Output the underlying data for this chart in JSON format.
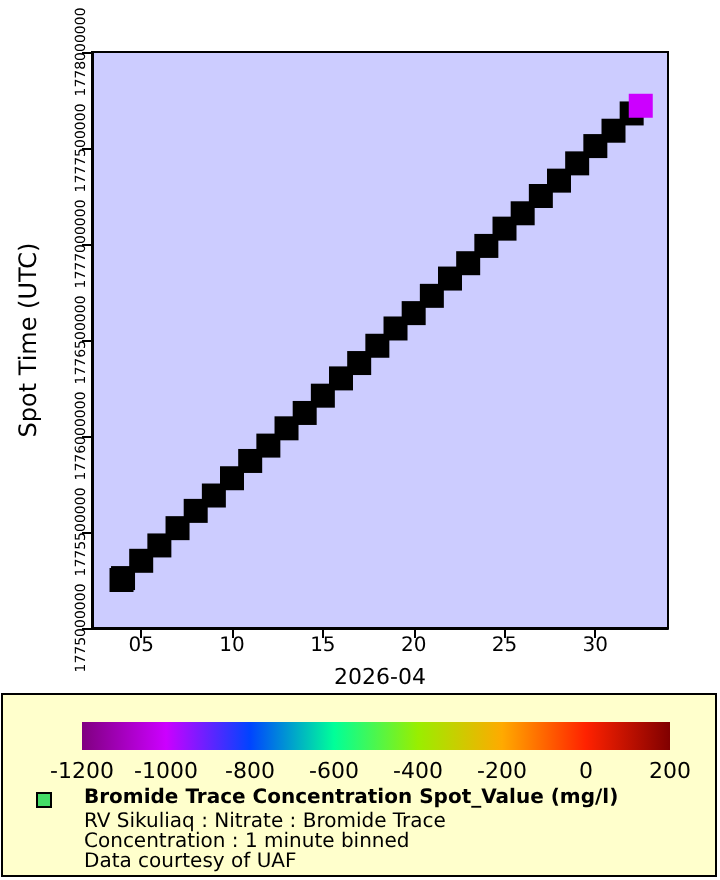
{
  "chart_data": {
    "type": "scatter",
    "xlabel": "2026-04",
    "ylabel": "Spot Time (UTC)",
    "clabel": "Bromide Trace Concentration Spot_Value (mg/l)",
    "annotations": [
      "RV Sikuliaq : Nitrate : Bromide Trace",
      "Concentration : 1 minute binned",
      "Data courtesy of UAF"
    ],
    "x": [
      "2026-04-03T22:00",
      "2026-04-04",
      "2026-04-05",
      "2026-04-06",
      "2026-04-07",
      "2026-04-08",
      "2026-04-09",
      "2026-04-10",
      "2026-04-11",
      "2026-04-12",
      "2026-04-13",
      "2026-04-14",
      "2026-04-15",
      "2026-04-16",
      "2026-04-17",
      "2026-04-18",
      "2026-04-19",
      "2026-04-20",
      "2026-04-21",
      "2026-04-22",
      "2026-04-23",
      "2026-04-24",
      "2026-04-25",
      "2026-04-26",
      "2026-04-27",
      "2026-04-28",
      "2026-04-29",
      "2026-04-30",
      "2026-05-01",
      "2026-05-02",
      "2026-05-02T12:00"
    ],
    "series": [
      {
        "colors": [
          "#000000",
          "#000000",
          "#000000",
          "#000000",
          "#000000",
          "#000000",
          "#000000",
          "#000000",
          "#000000",
          "#000000",
          "#000000",
          "#000000",
          "#000000",
          "#000000",
          "#000000",
          "#000000",
          "#000000",
          "#000000",
          "#000000",
          "#000000",
          "#000000",
          "#000000",
          "#000000",
          "#000000",
          "#000000",
          "#000000",
          "#000000",
          "#000000",
          "#000000",
          "#000000",
          "#cc00ff"
        ],
        "values": [
          1775250000,
          1775260000,
          1775350000,
          1775430000,
          1775520000,
          1775610000,
          1775690000,
          1775780000,
          1775870000,
          1775950000,
          1776040000,
          1776120000,
          1776210000,
          1776300000,
          1776380000,
          1776470000,
          1776560000,
          1776640000,
          1776730000,
          1776820000,
          1776900000,
          1776990000,
          1777080000,
          1777160000,
          1777250000,
          1777330000,
          1777420000,
          1777510000,
          1777590000,
          1777680000,
          1777720000
        ]
      }
    ],
    "xlim": [
      "2026-04-02T07:00",
      "2026-05-04"
    ],
    "xticks": [
      {
        "value": "2026-04-05",
        "label": "05"
      },
      {
        "value": "2026-04-10",
        "label": "10"
      },
      {
        "value": "2026-04-15",
        "label": "15"
      },
      {
        "value": "2026-04-20",
        "label": "20"
      },
      {
        "value": "2026-04-25",
        "label": "25"
      },
      {
        "value": "2026-04-30",
        "label": "30"
      }
    ],
    "ylim": [
      1775000000,
      1778000000
    ],
    "yticks": [
      1775000000,
      1775500000,
      1776000000,
      1776500000,
      1777000000,
      1777500000,
      1778000000
    ],
    "clim": [
      -1200,
      200
    ],
    "cticks": [
      -1200,
      -1000,
      -800,
      -600,
      -400,
      -200,
      0,
      200
    ],
    "marker": "square",
    "grid": false
  }
}
